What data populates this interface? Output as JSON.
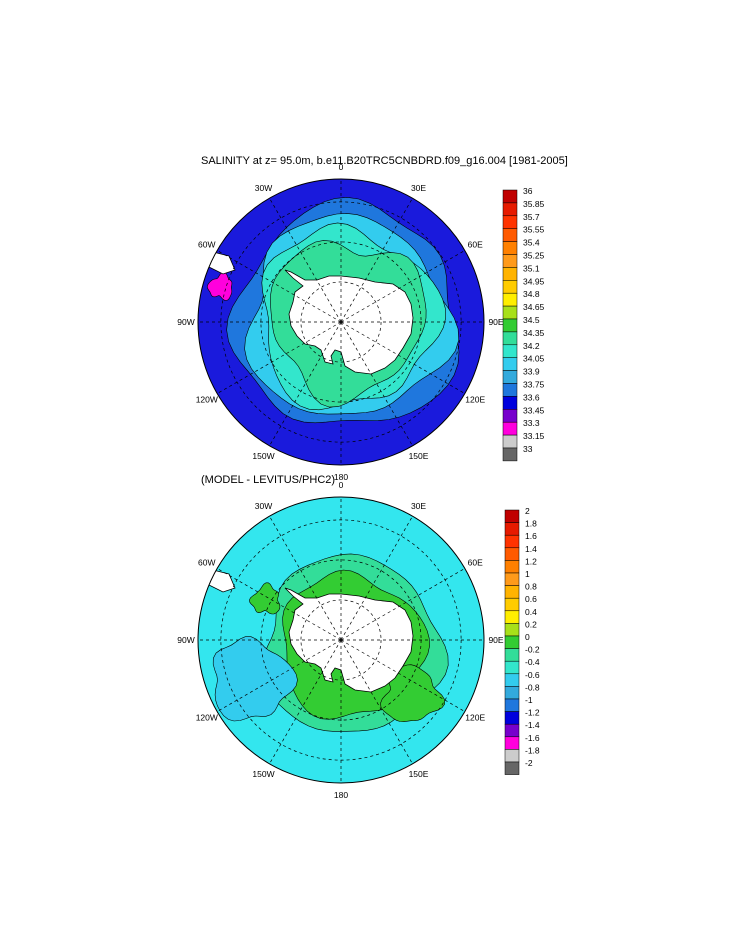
{
  "panels": [
    {
      "title": "SALINITY at z=  95.0m, b.e11.B20TRC5CNBDRD.f09_g16.004 [1981-2005]",
      "lon_labels": [
        "0",
        "30E",
        "60E",
        "90E",
        "120E",
        "150E",
        "180",
        "150W",
        "120W",
        "90W",
        "60W",
        "30W"
      ],
      "colorbar": {
        "labels": [
          "36",
          "35.85",
          "35.7",
          "35.55",
          "35.4",
          "35.25",
          "35.1",
          "34.95",
          "34.8",
          "34.65",
          "34.5",
          "34.35",
          "34.2",
          "34.05",
          "33.9",
          "33.75",
          "33.6",
          "33.45",
          "33.3",
          "33.15",
          "33"
        ],
        "colors": [
          "#c00000",
          "#e61a00",
          "#ff3300",
          "#ff5a00",
          "#ff8000",
          "#ff9a1a",
          "#ffb300",
          "#ffcc00",
          "#ffee00",
          "#a8e01a",
          "#33cc33",
          "#33dd99",
          "#33e6cc",
          "#33ccee",
          "#33aadd",
          "#1f77dd",
          "#0000dd",
          "#7700cc",
          "#ff00dd",
          "#cccccc",
          "#666666"
        ]
      },
      "fields": {
        "ocean_fill": "#1a1adc",
        "zones": [
          "#1f77dd",
          "#33ccee",
          "#33e6cc",
          "#33dd99"
        ]
      }
    },
    {
      "title": "(MODEL - LEVITUS/PHC2)",
      "lon_labels": [
        "0",
        "30E",
        "60E",
        "90E",
        "120E",
        "150E",
        "180",
        "150W",
        "120W",
        "90W",
        "60W",
        "30W"
      ],
      "colorbar": {
        "labels": [
          "2",
          "1.8",
          "1.6",
          "1.4",
          "1.2",
          "1",
          "0.8",
          "0.6",
          "0.4",
          "0.2",
          "0",
          "-0.2",
          "-0.4",
          "-0.6",
          "-0.8",
          "-1",
          "-1.2",
          "-1.4",
          "-1.6",
          "-1.8",
          "-2"
        ],
        "colors": [
          "#c00000",
          "#e61a00",
          "#ff3300",
          "#ff5a00",
          "#ff8000",
          "#ff9a1a",
          "#ffb300",
          "#ffcc00",
          "#ffee00",
          "#a8e01a",
          "#33cc33",
          "#33dd99",
          "#33e6cc",
          "#33ccee",
          "#33aadd",
          "#1f77dd",
          "#0000dd",
          "#7700cc",
          "#ff00dd",
          "#cccccc",
          "#666666"
        ]
      },
      "fields": {
        "ocean_fill": "#33e6ee",
        "zones": [
          "#33dd99",
          "#33cc33"
        ]
      }
    }
  ]
}
